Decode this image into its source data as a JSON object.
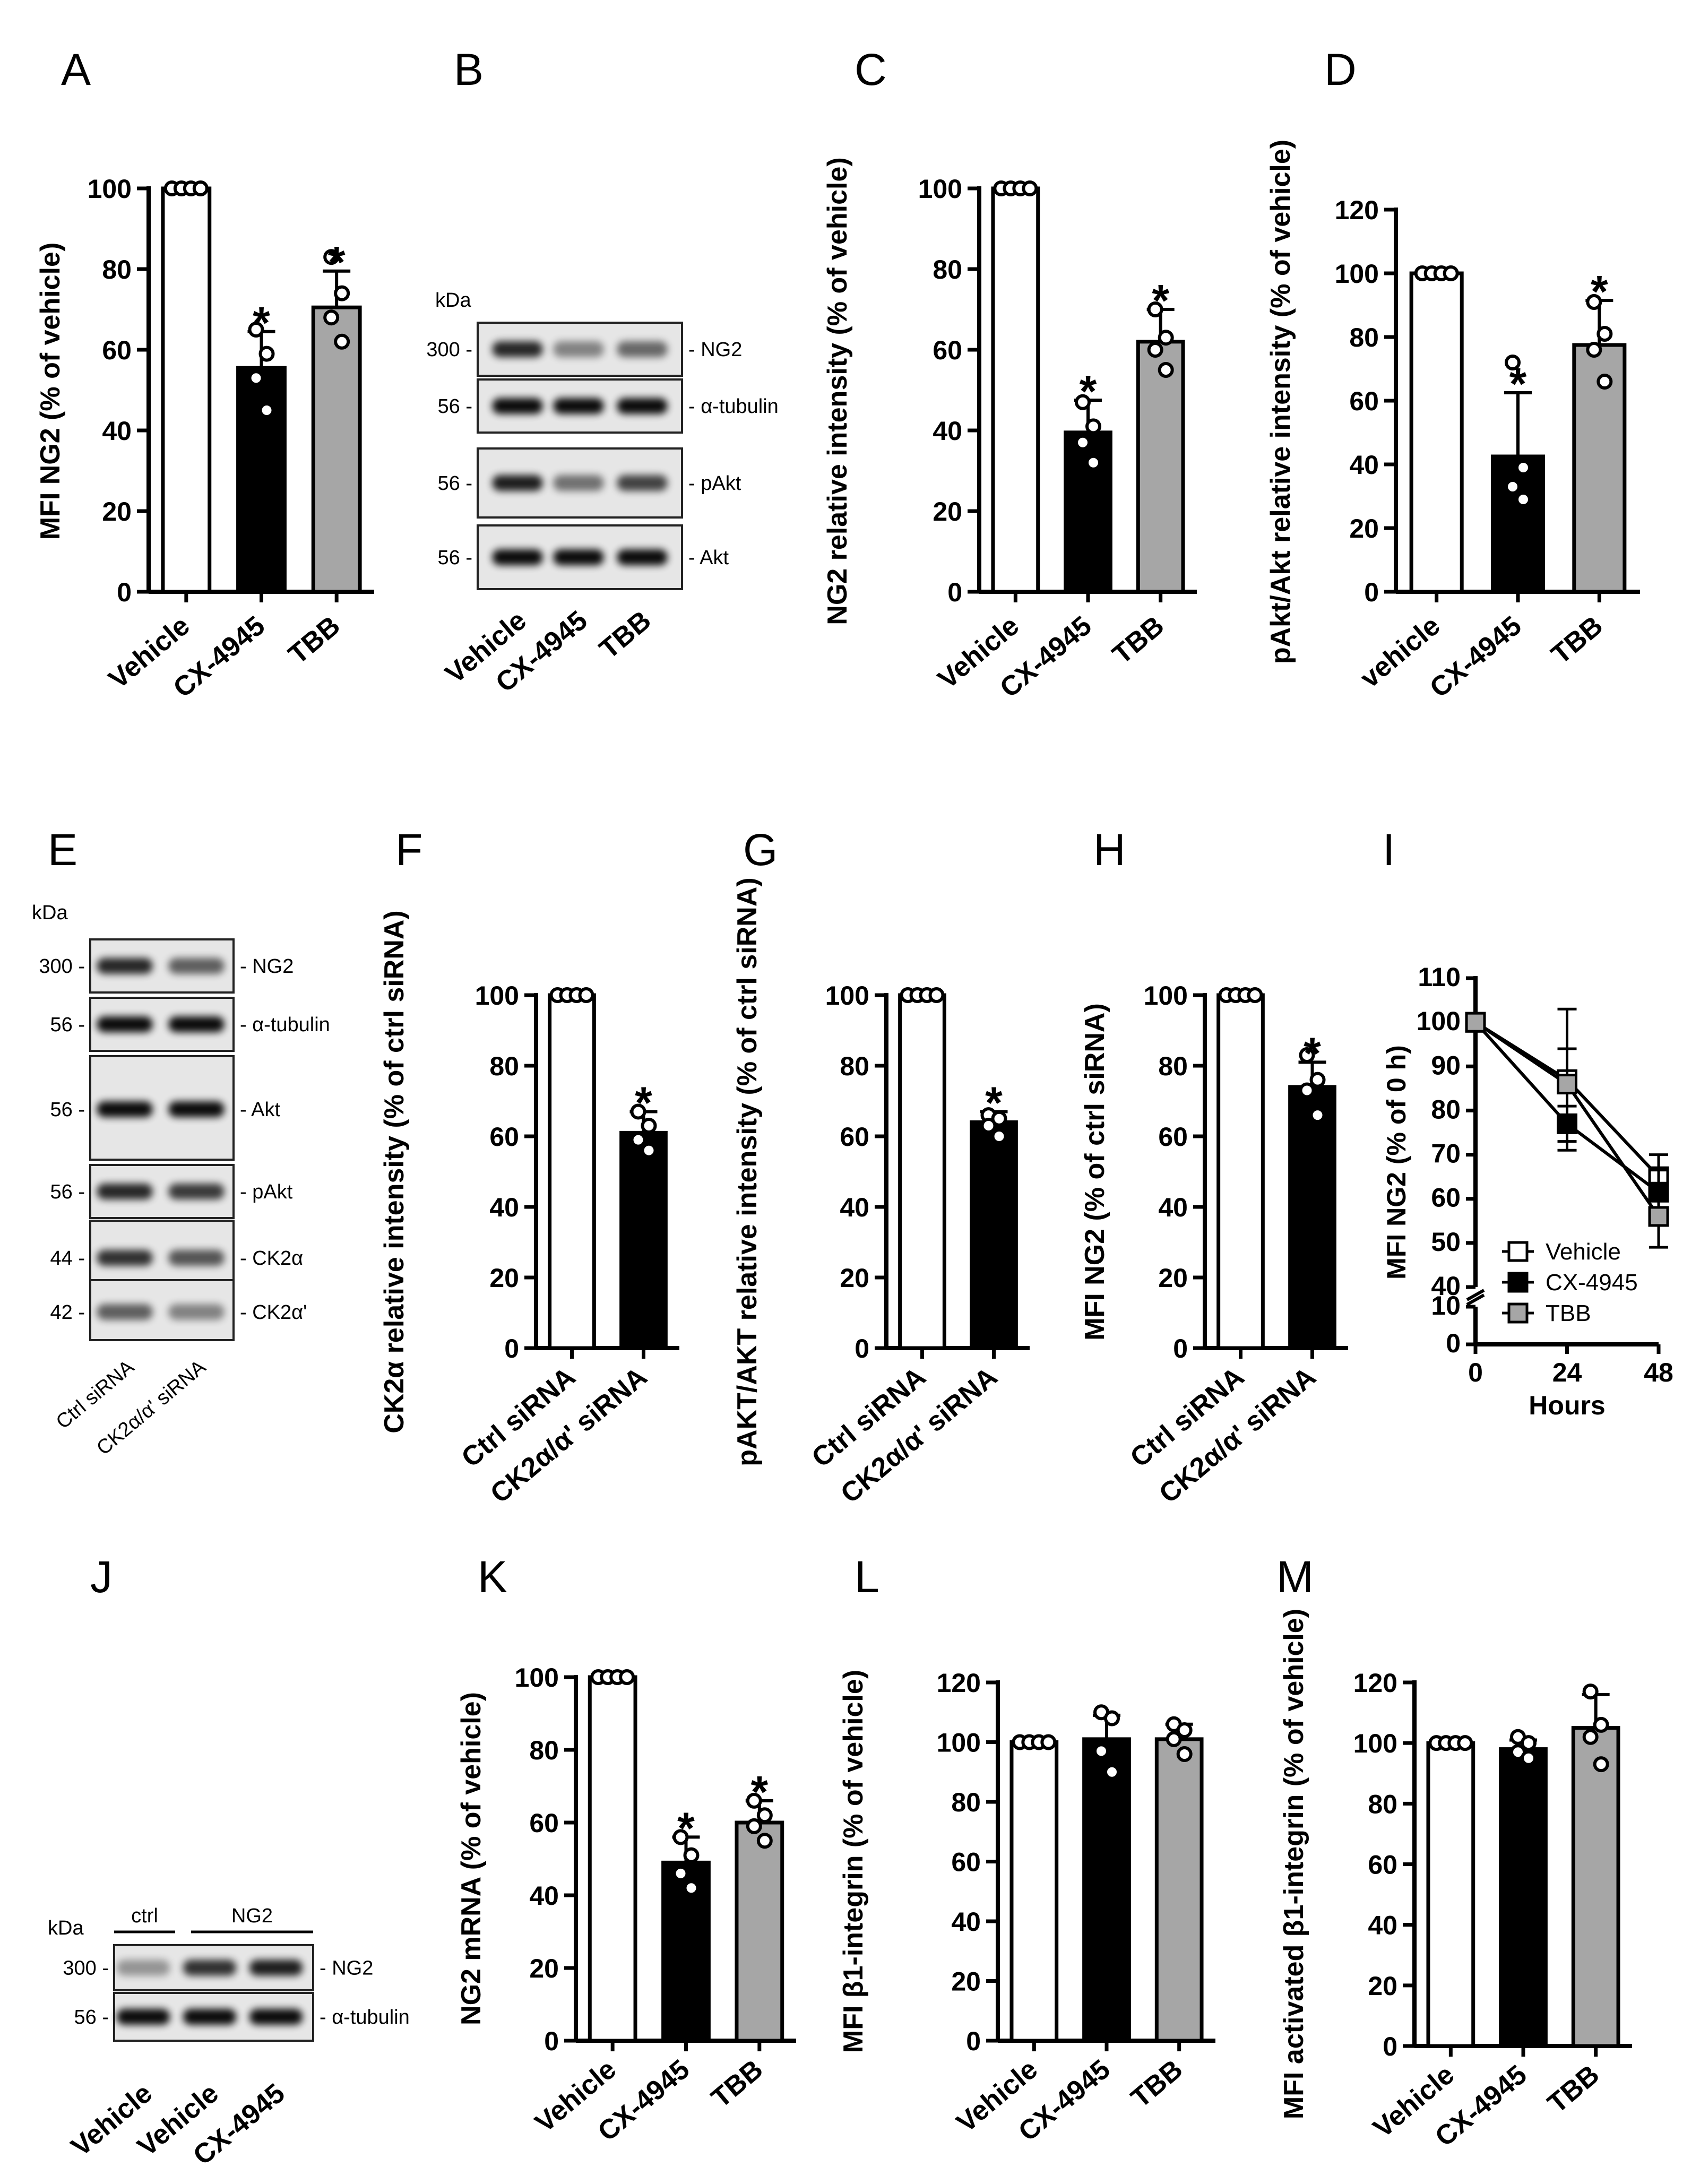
{
  "panel_letters": [
    "A",
    "B",
    "C",
    "D",
    "E",
    "F",
    "G",
    "H",
    "I",
    "J",
    "K",
    "L",
    "M"
  ],
  "chart_data": [
    {
      "panel": "A",
      "type": "bar",
      "categories": [
        "Vehicle",
        "CX-4945",
        "TBB"
      ],
      "values": [
        100,
        55.5,
        70.5
      ],
      "errors": [
        0,
        9,
        9
      ],
      "points": [
        [
          100,
          100,
          100,
          100
        ],
        [
          65,
          59,
          53,
          45
        ],
        [
          83,
          74,
          68,
          62
        ]
      ],
      "significance": [
        "",
        "*",
        "*"
      ],
      "colors": [
        "#ffffff",
        "#000000",
        "#a6a6a6"
      ],
      "ylabel": "MFI NG2 (% of vehicle)",
      "ylim": [
        0,
        100
      ],
      "yticks": [
        0,
        20,
        40,
        60,
        80,
        100
      ]
    },
    {
      "panel": "C",
      "type": "bar",
      "categories": [
        "Vehicle",
        "CX-4945",
        "TBB"
      ],
      "values": [
        100,
        39.5,
        62
      ],
      "errors": [
        0,
        8,
        8
      ],
      "points": [
        [
          100,
          100,
          100,
          100
        ],
        [
          47,
          41,
          37,
          32
        ],
        [
          70,
          63,
          60,
          55
        ]
      ],
      "significance": [
        "",
        "*",
        "*"
      ],
      "colors": [
        "#ffffff",
        "#000000",
        "#a6a6a6"
      ],
      "ylabel": "NG2 relative intensity (% of vehicle)",
      "ylim": [
        0,
        100
      ],
      "yticks": [
        0,
        20,
        40,
        60,
        80,
        100
      ]
    },
    {
      "panel": "D",
      "type": "bar",
      "categories": [
        "vehicle",
        "CX-4945",
        "TBB"
      ],
      "values": [
        100,
        42.5,
        77.5
      ],
      "errors": [
        0,
        20,
        14
      ],
      "points": [
        [
          100,
          100,
          100,
          100
        ],
        [
          72,
          39,
          33,
          29
        ],
        [
          91,
          81,
          76,
          66
        ]
      ],
      "significance": [
        "",
        "*",
        "*"
      ],
      "colors": [
        "#ffffff",
        "#000000",
        "#a6a6a6"
      ],
      "ylabel": "pAkt/Akt relative intensity (% of vehicle)",
      "ylim": [
        0,
        120
      ],
      "yticks": [
        0,
        20,
        40,
        60,
        80,
        100,
        120
      ]
    },
    {
      "panel": "F",
      "type": "bar",
      "categories": [
        "Ctrl siRNA",
        "CK2α/α' siRNA"
      ],
      "values": [
        100,
        61
      ],
      "errors": [
        0,
        6
      ],
      "points": [
        [
          100,
          100,
          100,
          100
        ],
        [
          67,
          63,
          59,
          56
        ]
      ],
      "significance": [
        "",
        "*"
      ],
      "colors": [
        "#ffffff",
        "#000000"
      ],
      "ylabel": "CK2α relative intensity (% of ctrl siRNA)",
      "ylim": [
        0,
        100
      ],
      "yticks": [
        0,
        20,
        40,
        60,
        80,
        100
      ]
    },
    {
      "panel": "G",
      "type": "bar",
      "categories": [
        "Ctrl siRNA",
        "CK2α/α' siRNA"
      ],
      "values": [
        100,
        64
      ],
      "errors": [
        0,
        3
      ],
      "points": [
        [
          100,
          100,
          100,
          100
        ],
        [
          66,
          65,
          63,
          60
        ]
      ],
      "significance": [
        "",
        "*"
      ],
      "colors": [
        "#ffffff",
        "#000000"
      ],
      "ylabel": "pAKT/AKT relative intensity (% of ctrl siRNA)",
      "ylim": [
        0,
        100
      ],
      "yticks": [
        0,
        20,
        40,
        60,
        80,
        100
      ]
    },
    {
      "panel": "H",
      "type": "bar",
      "categories": [
        "Ctrl siRNA",
        "CK2α/α' siRNA"
      ],
      "values": [
        100,
        74
      ],
      "errors": [
        0,
        7
      ],
      "points": [
        [
          100,
          100,
          100,
          100
        ],
        [
          83,
          76,
          73,
          66
        ]
      ],
      "significance": [
        "",
        "*"
      ],
      "colors": [
        "#ffffff",
        "#000000"
      ],
      "ylabel": "MFI NG2 (% of ctrl siRNA)",
      "ylim": [
        0,
        100
      ],
      "yticks": [
        0,
        20,
        40,
        60,
        80,
        100
      ]
    },
    {
      "panel": "I",
      "type": "line",
      "x": [
        0,
        24,
        48
      ],
      "series": [
        {
          "name": "Vehicle",
          "values": [
            100,
            87,
            65
          ],
          "errors": [
            0,
            16,
            5
          ],
          "color": "#ffffff"
        },
        {
          "name": "CX-4945",
          "values": [
            100,
            77,
            61.5
          ],
          "errors": [
            0,
            4,
            5
          ],
          "color": "#000000"
        },
        {
          "name": "TBB",
          "values": [
            100,
            86,
            56
          ],
          "errors": [
            0,
            8,
            7
          ],
          "color": "#a6a6a6"
        }
      ],
      "xlabel": "Hours",
      "ylabel": "MFI NG2 (% of 0 h)",
      "xticks": [
        0,
        24,
        48
      ],
      "yticks": [
        0,
        10,
        40,
        50,
        60,
        70,
        80,
        90,
        100,
        110
      ],
      "ybreak": [
        10,
        40
      ],
      "legend": "bottom-left"
    },
    {
      "panel": "K",
      "type": "bar",
      "categories": [
        "Vehicle",
        "CX-4945",
        "TBB"
      ],
      "values": [
        100,
        49,
        60
      ],
      "errors": [
        0,
        7,
        6
      ],
      "points": [
        [
          100,
          100,
          100,
          100
        ],
        [
          56,
          51,
          46,
          42
        ],
        [
          66,
          62,
          59,
          55
        ]
      ],
      "significance": [
        "",
        "*",
        "*"
      ],
      "colors": [
        "#ffffff",
        "#000000",
        "#a6a6a6"
      ],
      "ylabel": "NG2 mRNA (% of vehicle)",
      "ylim": [
        0,
        100
      ],
      "yticks": [
        0,
        20,
        40,
        60,
        80,
        100
      ]
    },
    {
      "panel": "L",
      "type": "bar",
      "categories": [
        "Vehicle",
        "CX-4945",
        "TBB"
      ],
      "values": [
        100,
        101,
        101
      ],
      "errors": [
        0,
        8,
        5
      ],
      "points": [
        [
          100,
          100,
          100,
          100
        ],
        [
          110,
          108,
          97,
          90
        ],
        [
          106,
          104,
          101,
          96
        ]
      ],
      "significance": [
        "",
        "",
        ""
      ],
      "colors": [
        "#ffffff",
        "#000000",
        "#a6a6a6"
      ],
      "ylabel": "MFI β1-integrin (% of vehicle)",
      "ylim": [
        0,
        120
      ],
      "yticks": [
        0,
        20,
        40,
        60,
        80,
        100,
        120
      ]
    },
    {
      "panel": "M",
      "type": "bar",
      "categories": [
        "Vehicle",
        "CX-4945",
        "TBB"
      ],
      "values": [
        100,
        98,
        105
      ],
      "errors": [
        0,
        3,
        11
      ],
      "points": [
        [
          100,
          100,
          100,
          100
        ],
        [
          102,
          100,
          97,
          95
        ],
        [
          117,
          106,
          102,
          93
        ]
      ],
      "significance": [
        "",
        "",
        ""
      ],
      "colors": [
        "#ffffff",
        "#000000",
        "#a6a6a6"
      ],
      "ylabel": "MFI activated β1-integrin (% of vehicle)",
      "ylim": [
        0,
        120
      ],
      "yticks": [
        0,
        20,
        40,
        60,
        80,
        100,
        120
      ]
    }
  ],
  "blots": [
    {
      "panel": "B",
      "unit": "kDa",
      "lanes": [
        "Vehicle",
        "CX-4945",
        "TBB"
      ],
      "strips": [
        {
          "mw": "300 -",
          "label": "- NG2",
          "intensity": [
            0.85,
            0.35,
            0.5
          ]
        },
        {
          "mw": "56 -",
          "label": "- α-tubulin",
          "intensity": [
            1,
            1,
            1
          ]
        },
        {
          "mw": "56 -",
          "label": "- pAkt",
          "intensity": [
            0.9,
            0.45,
            0.7
          ]
        },
        {
          "mw": "56 -",
          "label": "- Akt",
          "intensity": [
            1,
            1,
            1
          ]
        }
      ]
    },
    {
      "panel": "E",
      "unit": "kDa",
      "lanes": [
        "Ctrl siRNA",
        "CK2α/α' siRNA"
      ],
      "strips": [
        {
          "mw": "300 -",
          "label": "- NG2",
          "intensity": [
            0.85,
            0.55
          ]
        },
        {
          "mw": "56 -",
          "label": "- α-tubulin",
          "intensity": [
            1,
            1
          ]
        },
        {
          "mw": "56 -",
          "label": "- Akt",
          "intensity": [
            1,
            1
          ]
        },
        {
          "mw": "56 -",
          "label": "- pAkt",
          "intensity": [
            0.85,
            0.75
          ]
        },
        {
          "mw": "44 -",
          "label": "- CK2α",
          "intensity": [
            0.8,
            0.6
          ]
        },
        {
          "mw": "42 -",
          "label": "- CK2α'",
          "intensity": [
            0.55,
            0.35
          ]
        }
      ]
    },
    {
      "panel": "J",
      "unit": "kDa",
      "groups": [
        "ctrl",
        "NG2"
      ],
      "lanes": [
        "Vehicle",
        "Vehicle",
        "CX-4945"
      ],
      "strips": [
        {
          "mw": "300 -",
          "label": "- NG2",
          "intensity": [
            0.25,
            0.8,
            0.9
          ]
        },
        {
          "mw": "56 -",
          "label": "- α-tubulin",
          "intensity": [
            1,
            1,
            1
          ]
        }
      ]
    }
  ]
}
